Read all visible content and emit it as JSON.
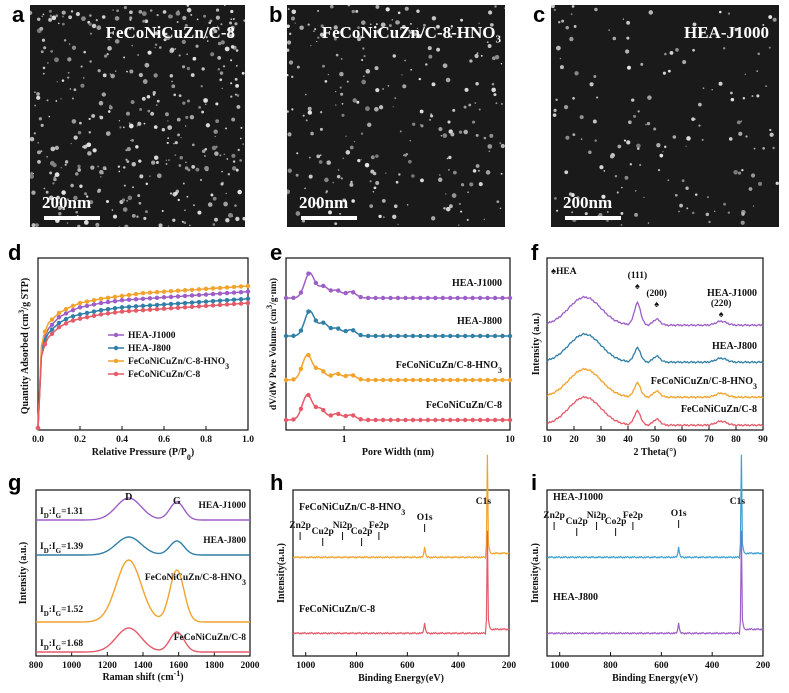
{
  "panels": {
    "a": {
      "letter": "a",
      "title": "FeCoNiCuZn/C-8",
      "scale": "200nm"
    },
    "b": {
      "letter": "b",
      "title": "FeCoNiCuZn/C-8-HNO",
      "title_sub": "3",
      "scale": "200nm"
    },
    "c": {
      "letter": "c",
      "title": "HEA-J1000",
      "scale": "200nm"
    },
    "d": {
      "letter": "d"
    },
    "e": {
      "letter": "e"
    },
    "f": {
      "letter": "f"
    },
    "g": {
      "letter": "g"
    },
    "h": {
      "letter": "h"
    },
    "i": {
      "letter": "i"
    }
  },
  "colors": {
    "HEA-J1000": "#9d5ec8",
    "HEA-J800": "#2f7fa6",
    "FeCoNiCuZn/C-8-HNO3": "#f1a32b",
    "FeCoNiCuZn/C-8": "#e45a68",
    "blue": "#3ea0d2"
  },
  "chart_data": [
    {
      "id": "d",
      "type": "line",
      "xlabel": "Relative Pressure (P/P",
      "xlabel_sub": "0",
      "xlabel_end": ")",
      "ylabel": "Quantity Adsorbed (cm",
      "ylabel_sup": "3",
      "ylabel_end": "/g STP)",
      "xticks": [
        "0.0",
        "0.2",
        "0.4",
        "0.6",
        "0.8",
        "1.0"
      ],
      "xlim": [
        0,
        1
      ],
      "legend": [
        "HEA-J1000",
        "HEA-J800",
        "FeCoNiCuZn/C-8-HNO",
        "FeCoNiCuZn/C-8"
      ],
      "legend_sub": [
        "",
        "",
        "3",
        ""
      ],
      "series": [
        {
          "name": "HEA-J1000",
          "x": [
            0,
            0.005,
            0.02,
            0.05,
            0.1,
            0.15,
            0.2,
            0.3,
            0.4,
            0.5,
            0.6,
            0.7,
            0.8,
            0.9,
            1.0
          ],
          "y": [
            0,
            0.4,
            0.6,
            0.7,
            0.78,
            0.82,
            0.85,
            0.88,
            0.9,
            0.91,
            0.92,
            0.93,
            0.94,
            0.95,
            0.96
          ]
        },
        {
          "name": "HEA-J800",
          "x": [
            0,
            0.005,
            0.02,
            0.05,
            0.1,
            0.15,
            0.2,
            0.3,
            0.4,
            0.5,
            0.6,
            0.7,
            0.8,
            0.9,
            1.0
          ],
          "y": [
            0,
            0.38,
            0.58,
            0.67,
            0.74,
            0.78,
            0.8,
            0.83,
            0.85,
            0.86,
            0.87,
            0.88,
            0.89,
            0.9,
            0.91
          ]
        },
        {
          "name": "FeCoNiCuZn/C-8-HNO3",
          "x": [
            0,
            0.005,
            0.02,
            0.05,
            0.1,
            0.15,
            0.2,
            0.3,
            0.4,
            0.5,
            0.6,
            0.7,
            0.8,
            0.9,
            1.0
          ],
          "y": [
            0,
            0.42,
            0.63,
            0.74,
            0.81,
            0.85,
            0.88,
            0.91,
            0.93,
            0.95,
            0.96,
            0.97,
            0.98,
            0.99,
            1.0
          ]
        },
        {
          "name": "FeCoNiCuZn/C-8",
          "x": [
            0,
            0.005,
            0.02,
            0.05,
            0.1,
            0.15,
            0.2,
            0.3,
            0.4,
            0.5,
            0.6,
            0.7,
            0.8,
            0.9,
            1.0
          ],
          "y": [
            0,
            0.36,
            0.55,
            0.64,
            0.71,
            0.75,
            0.77,
            0.8,
            0.82,
            0.83,
            0.84,
            0.85,
            0.86,
            0.87,
            0.88
          ]
        }
      ]
    },
    {
      "id": "e",
      "type": "line",
      "xlabel": "Pore Width (nm)",
      "ylabel": "dV/dW Pore Volume (cm",
      "ylabel_sup": "3",
      "ylabel_end": "/g·nm)",
      "xticks": [
        "1",
        "10"
      ],
      "labels": [
        "HEA-J1000",
        "HEA-J800",
        "FeCoNiCuZn/C-8-HNO",
        "FeCoNiCuZn/C-8"
      ],
      "labels_sub": [
        "",
        "",
        "3",
        ""
      ],
      "series": [
        {
          "name": "HEA-J1000",
          "peaks": [
            [
              0.62,
              1.0
            ],
            [
              0.75,
              0.45
            ],
            [
              0.9,
              0.3
            ],
            [
              1.1,
              0.25
            ]
          ]
        },
        {
          "name": "HEA-J800",
          "peaks": [
            [
              0.62,
              1.0
            ],
            [
              0.75,
              0.5
            ],
            [
              0.9,
              0.3
            ],
            [
              1.1,
              0.25
            ]
          ]
        },
        {
          "name": "FeCoNiCuZn/C-8-HNO3",
          "peaks": [
            [
              0.6,
              1.0
            ],
            [
              0.72,
              0.4
            ],
            [
              0.9,
              0.25
            ],
            [
              1.1,
              0.2
            ]
          ]
        },
        {
          "name": "FeCoNiCuZn/C-8",
          "peaks": [
            [
              0.6,
              1.0
            ],
            [
              0.72,
              0.45
            ],
            [
              0.9,
              0.25
            ],
            [
              1.1,
              0.2
            ]
          ]
        }
      ]
    },
    {
      "id": "f",
      "type": "line",
      "xlabel": "2 Theta(°)",
      "ylabel": "Intensity (a.u.)",
      "xticks": [
        "10",
        "20",
        "30",
        "40",
        "50",
        "60",
        "70",
        "80",
        "90"
      ],
      "xlim": [
        10,
        90
      ],
      "legend_marker": "♠HEA",
      "peak_labels": [
        "(111)",
        "(200)",
        "(220)"
      ],
      "peak_positions": [
        43.5,
        50.6,
        74.5
      ],
      "labels": [
        "HEA-J1000",
        "HEA-J800",
        "FeCoNiCuZn/C-8-HNO",
        "FeCoNiCuZn/C-8"
      ],
      "labels_sub": [
        "",
        "",
        "3",
        ""
      ]
    },
    {
      "id": "g",
      "type": "line",
      "xlabel": "Raman shift (cm",
      "xlabel_sup": "-1",
      "xlabel_end": ")",
      "ylabel": "Intensity (a.u.)",
      "xticks": [
        "800",
        "1000",
        "1200",
        "1400",
        "1600",
        "1800",
        "2000"
      ],
      "xlim": [
        800,
        2000
      ],
      "band_labels": [
        "D",
        "G"
      ],
      "ratios": [
        "1.31",
        "1.39",
        "1.52",
        "1.68"
      ],
      "ratio_prefix": "I",
      "labels": [
        "HEA-J1000",
        "HEA-J800",
        "FeCoNiCuZn/C-8-HNO",
        "FeCoNiCuZn/C-8"
      ],
      "labels_sub": [
        "",
        "",
        "3",
        ""
      ]
    },
    {
      "id": "h",
      "type": "line",
      "xlabel": "Binding Energy(eV)",
      "ylabel": "Intensity(a.u.)",
      "xticks": [
        "1000",
        "800",
        "600",
        "400",
        "200"
      ],
      "xlim": [
        1050,
        200
      ],
      "labels": [
        "FeCoNiCuZn/C-8-HNO",
        "FeCoNiCuZn/C-8"
      ],
      "labels_sub": [
        "3",
        ""
      ],
      "peaks": [
        "Zn2p",
        "Cu2p",
        "Ni2p",
        "Co2p",
        "Fe2p",
        "O1s",
        "C1s"
      ]
    },
    {
      "id": "i",
      "type": "line",
      "xlabel": "Binding Energy(eV)",
      "ylabel": "Intensity(a.u.)",
      "xticks": [
        "1000",
        "800",
        "600",
        "400",
        "200"
      ],
      "xlim": [
        1050,
        200
      ],
      "labels": [
        "HEA-J1000",
        "HEA-J800"
      ],
      "peaks": [
        "Zn2p",
        "Cu2p",
        "Ni2p",
        "Co2p",
        "Fe2p",
        "O1s",
        "C1s"
      ]
    }
  ]
}
